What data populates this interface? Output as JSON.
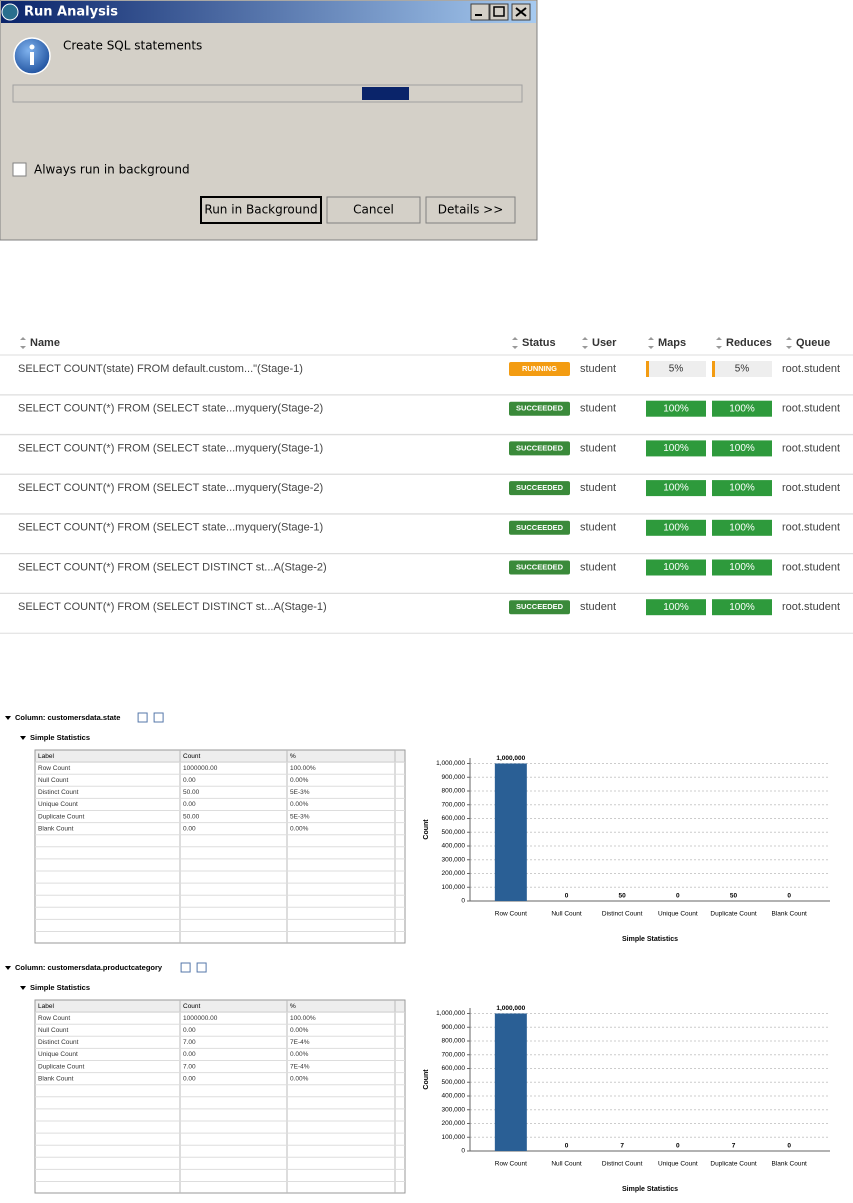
{
  "dialog": {
    "title": "Run Analysis",
    "message": "Create SQL  statements",
    "checkbox": "Always run in background",
    "buttons": [
      "Run in Background",
      "Cancel",
      "Details >>"
    ]
  },
  "jobs": {
    "columns": [
      "Name",
      "Status",
      "User",
      "Maps",
      "Reduces",
      "Queue"
    ],
    "rows": [
      {
        "name": "SELECT COUNT(state) FROM default.custom...\"(Stage-1)",
        "status": "RUNNING",
        "user": "student",
        "maps": "5%",
        "reduces": "5%",
        "queue": "root.student",
        "status_color": "#f39c12",
        "bar_color": "#eeeeee"
      },
      {
        "name": "SELECT COUNT(*) FROM (SELECT state...myquery(Stage-2)",
        "status": "SUCCEEDED",
        "user": "student",
        "maps": "100%",
        "reduces": "100%",
        "queue": "root.student",
        "status_color": "#3a8a3a",
        "bar_color": "#2e9a3c"
      },
      {
        "name": "SELECT COUNT(*) FROM (SELECT state...myquery(Stage-1)",
        "status": "SUCCEEDED",
        "user": "student",
        "maps": "100%",
        "reduces": "100%",
        "queue": "root.student",
        "status_color": "#3a8a3a",
        "bar_color": "#2e9a3c"
      },
      {
        "name": "SELECT COUNT(*) FROM (SELECT state...myquery(Stage-2)",
        "status": "SUCCEEDED",
        "user": "student",
        "maps": "100%",
        "reduces": "100%",
        "queue": "root.student",
        "status_color": "#3a8a3a",
        "bar_color": "#2e9a3c"
      },
      {
        "name": "SELECT COUNT(*) FROM (SELECT state...myquery(Stage-1)",
        "status": "SUCCEEDED",
        "user": "student",
        "maps": "100%",
        "reduces": "100%",
        "queue": "root.student",
        "status_color": "#3a8a3a",
        "bar_color": "#2e9a3c"
      },
      {
        "name": "SELECT COUNT(*) FROM (SELECT DISTINCT st...A(Stage-2)",
        "status": "SUCCEEDED",
        "user": "student",
        "maps": "100%",
        "reduces": "100%",
        "queue": "root.student",
        "status_color": "#3a8a3a",
        "bar_color": "#2e9a3c"
      },
      {
        "name": "SELECT COUNT(*) FROM (SELECT DISTINCT st...A(Stage-1)",
        "status": "SUCCEEDED",
        "user": "student",
        "maps": "100%",
        "reduces": "100%",
        "queue": "root.student",
        "status_color": "#3a8a3a",
        "bar_color": "#2e9a3c"
      }
    ]
  },
  "profiles": [
    {
      "column": "Column: customersdata.state",
      "section": "Simple Statistics",
      "header": [
        "Label",
        "Count",
        "%"
      ],
      "rows": [
        [
          "Row Count",
          "1000000.00",
          "100.00%"
        ],
        [
          "Null Count",
          "0.00",
          "0.00%"
        ],
        [
          "Distinct Count",
          "50.00",
          "5E-3%"
        ],
        [
          "Unique Count",
          "0.00",
          "0.00%"
        ],
        [
          "Duplicate Count",
          "50.00",
          "5E-3%"
        ],
        [
          "Blank Count",
          "0.00",
          "0.00%"
        ]
      ]
    },
    {
      "column": "Column: customersdata.productcategory",
      "section": "Simple Statistics",
      "header": [
        "Label",
        "Count",
        "%"
      ],
      "rows": [
        [
          "Row Count",
          "1000000.00",
          "100.00%"
        ],
        [
          "Null Count",
          "0.00",
          "0.00%"
        ],
        [
          "Distinct Count",
          "7.00",
          "7E-4%"
        ],
        [
          "Unique Count",
          "0.00",
          "0.00%"
        ],
        [
          "Duplicate Count",
          "7.00",
          "7E-4%"
        ],
        [
          "Blank Count",
          "0.00",
          "0.00%"
        ]
      ]
    }
  ],
  "chart_data": [
    {
      "type": "bar",
      "xlabel": "Simple Statistics",
      "ylabel": "Count",
      "categories": [
        "Row Count",
        "Null Count",
        "Distinct Count",
        "Unique Count",
        "Duplicate Count",
        "Blank Count"
      ],
      "values": [
        1000000,
        0,
        50,
        0,
        50,
        0
      ],
      "value_labels": [
        "1,000,000",
        "0",
        "50",
        "0",
        "50",
        "0"
      ],
      "color": "#2a5f95",
      "ylim": [
        0,
        1040000
      ],
      "yticks": [
        0,
        {
          "value": 100000,
          "label": "100,000"
        },
        {
          "value": 200000,
          "label": "200,000"
        },
        {
          "value": 300000,
          "label": "300,000"
        },
        {
          "value": 400000,
          "label": "400,000"
        },
        {
          "value": 500000,
          "label": "500,000"
        },
        {
          "value": 600000,
          "label": "600,000"
        },
        {
          "value": 700000,
          "label": "700,000"
        },
        {
          "value": 800000,
          "label": "800,000"
        },
        {
          "value": 900000,
          "label": "900,000"
        },
        {
          "value": 1000000,
          "label": "1,000,000"
        }
      ],
      "grid": true
    },
    {
      "type": "bar",
      "xlabel": "Simple Statistics",
      "ylabel": "Count",
      "categories": [
        "Row Count",
        "Null Count",
        "Distinct Count",
        "Unique Count",
        "Duplicate Count",
        "Blank Count"
      ],
      "values": [
        1000000,
        0,
        7,
        0,
        7,
        0
      ],
      "value_labels": [
        "1,000,000",
        "0",
        "7",
        "0",
        "7",
        "0"
      ],
      "color": "#2a5f95",
      "ylim": [
        0,
        1040000
      ],
      "yticks": [
        0,
        {
          "value": 100000,
          "label": "100,000"
        },
        {
          "value": 200000,
          "label": "200,000"
        },
        {
          "value": 300000,
          "label": "300,000"
        },
        {
          "value": 400000,
          "label": "400,000"
        },
        {
          "value": 500000,
          "label": "500,000"
        },
        {
          "value": 600000,
          "label": "600,000"
        },
        {
          "value": 700000,
          "label": "700,000"
        },
        {
          "value": 800000,
          "label": "800,000"
        },
        {
          "value": 900000,
          "label": "900,000"
        },
        {
          "value": 1000000,
          "label": "1,000,000"
        }
      ],
      "grid": true
    }
  ]
}
